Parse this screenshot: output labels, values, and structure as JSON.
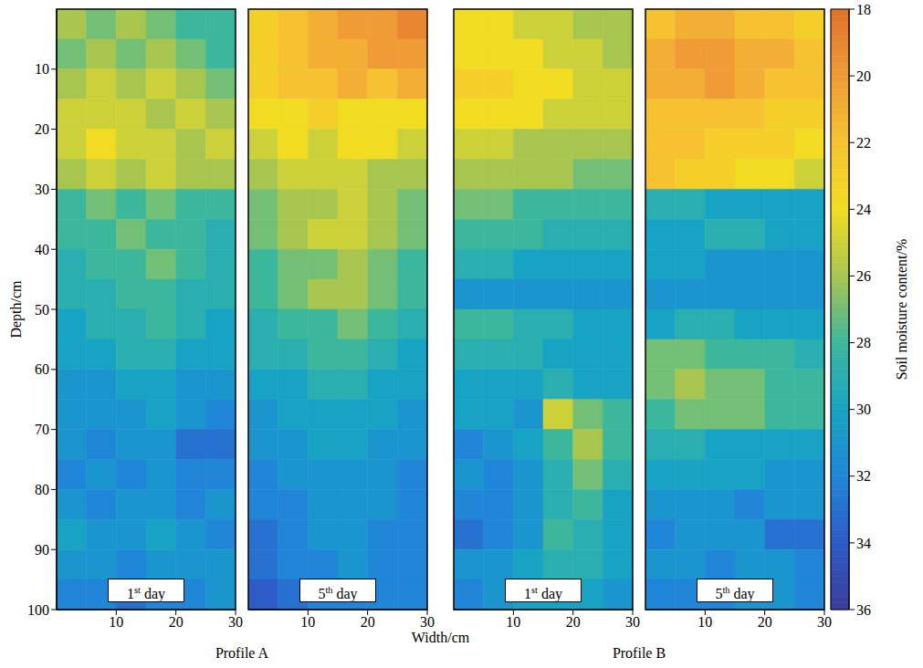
{
  "x_label": "Width/cm",
  "y_label": "Depth/cm",
  "colorbar": {
    "label": "Soil moisture content/%",
    "range": [
      18,
      36
    ],
    "ticks": [
      18,
      20,
      22,
      24,
      26,
      28,
      30,
      32,
      34,
      36
    ]
  },
  "chart_data": [
    {
      "type": "heatmap",
      "title": "1st day",
      "group": "Profile A",
      "tick_labels": true,
      "xlim": [
        0,
        30
      ],
      "xticks": [
        10,
        20,
        30
      ],
      "ylim": [
        0,
        100
      ],
      "yticks": [
        10,
        20,
        30,
        40,
        50,
        60,
        70,
        80,
        90,
        100
      ],
      "x_bins": [
        0,
        5,
        10,
        15,
        20,
        25,
        30
      ],
      "y_bins": [
        0,
        5,
        10,
        15,
        20,
        25,
        30,
        35,
        40,
        45,
        50,
        55,
        60,
        65,
        70,
        75,
        80,
        85,
        90,
        95,
        100
      ],
      "cells": [
        [
          26,
          27,
          26,
          27,
          28,
          28
        ],
        [
          27,
          26,
          27,
          26,
          27,
          28
        ],
        [
          26,
          25,
          26,
          25,
          26,
          27
        ],
        [
          25,
          25,
          25,
          26,
          25,
          26
        ],
        [
          25,
          24,
          25,
          25,
          26,
          25
        ],
        [
          26,
          25,
          26,
          25,
          26,
          26
        ],
        [
          28,
          27,
          28,
          27,
          28,
          28
        ],
        [
          28,
          28,
          27,
          28,
          28,
          29
        ],
        [
          29,
          28,
          28,
          27,
          28,
          29
        ],
        [
          29,
          29,
          28,
          28,
          29,
          29
        ],
        [
          30,
          29,
          29,
          28,
          29,
          30
        ],
        [
          30,
          30,
          29,
          29,
          30,
          30
        ],
        [
          31,
          31,
          30,
          30,
          31,
          31
        ],
        [
          31,
          31,
          31,
          30,
          31,
          32
        ],
        [
          31,
          32,
          31,
          31,
          33,
          33
        ],
        [
          32,
          31,
          32,
          31,
          32,
          32
        ],
        [
          31,
          32,
          31,
          31,
          32,
          31
        ],
        [
          30,
          31,
          31,
          30,
          31,
          32
        ],
        [
          31,
          31,
          32,
          31,
          31,
          31
        ],
        [
          32,
          32,
          33,
          32,
          32,
          31
        ]
      ]
    },
    {
      "type": "heatmap",
      "title": "5th day",
      "group": "Profile A",
      "tick_labels": "x",
      "xlim": [
        0,
        30
      ],
      "xticks": [
        10,
        20,
        30
      ],
      "ylim": [
        0,
        100
      ],
      "yticks": [
        10,
        20,
        30,
        40,
        50,
        60,
        70,
        80,
        90,
        100
      ],
      "x_bins": [
        0,
        5,
        10,
        15,
        20,
        25,
        30
      ],
      "y_bins": [
        0,
        5,
        10,
        15,
        20,
        25,
        30,
        35,
        40,
        45,
        50,
        55,
        60,
        65,
        70,
        75,
        80,
        85,
        90,
        95,
        100
      ],
      "cells": [
        [
          23,
          22,
          21,
          20,
          20,
          19
        ],
        [
          23,
          22,
          21,
          21,
          20,
          20
        ],
        [
          23,
          22,
          22,
          21,
          22,
          21
        ],
        [
          24,
          24,
          23,
          24,
          24,
          24
        ],
        [
          25,
          24,
          25,
          24,
          24,
          25
        ],
        [
          26,
          25,
          25,
          25,
          26,
          26
        ],
        [
          27,
          26,
          26,
          25,
          26,
          27
        ],
        [
          27,
          26,
          25,
          25,
          26,
          27
        ],
        [
          28,
          27,
          27,
          26,
          27,
          28
        ],
        [
          28,
          27,
          26,
          26,
          27,
          28
        ],
        [
          29,
          28,
          28,
          27,
          28,
          29
        ],
        [
          29,
          29,
          28,
          28,
          29,
          30
        ],
        [
          30,
          30,
          29,
          29,
          30,
          30
        ],
        [
          31,
          30,
          30,
          30,
          30,
          31
        ],
        [
          31,
          31,
          30,
          30,
          31,
          31
        ],
        [
          32,
          31,
          31,
          31,
          31,
          32
        ],
        [
          32,
          32,
          31,
          31,
          31,
          32
        ],
        [
          33,
          32,
          31,
          31,
          32,
          32
        ],
        [
          33,
          32,
          32,
          31,
          32,
          32
        ],
        [
          34,
          33,
          32,
          32,
          32,
          32
        ]
      ]
    },
    {
      "type": "heatmap",
      "title": "1st day",
      "group": "Profile B",
      "tick_labels": "x",
      "xlim": [
        0,
        30
      ],
      "xticks": [
        10,
        20,
        30
      ],
      "ylim": [
        0,
        100
      ],
      "yticks": [
        10,
        20,
        30,
        40,
        50,
        60,
        70,
        80,
        90,
        100
      ],
      "x_bins": [
        0,
        5,
        10,
        15,
        20,
        25,
        30
      ],
      "y_bins": [
        0,
        5,
        10,
        15,
        20,
        25,
        30,
        35,
        40,
        45,
        50,
        55,
        60,
        65,
        70,
        75,
        80,
        85,
        90,
        95,
        100
      ],
      "cells": [
        [
          24,
          24,
          25,
          25,
          26,
          26
        ],
        [
          24,
          24,
          24,
          25,
          25,
          26
        ],
        [
          23,
          23,
          24,
          24,
          25,
          25
        ],
        [
          24,
          24,
          24,
          25,
          25,
          25
        ],
        [
          25,
          25,
          26,
          26,
          26,
          26
        ],
        [
          26,
          26,
          26,
          26,
          27,
          27
        ],
        [
          27,
          27,
          28,
          28,
          28,
          28
        ],
        [
          28,
          28,
          28,
          29,
          29,
          29
        ],
        [
          29,
          29,
          30,
          30,
          30,
          30
        ],
        [
          31,
          31,
          31,
          31,
          31,
          31
        ],
        [
          28,
          28,
          29,
          29,
          30,
          30
        ],
        [
          29,
          29,
          29,
          30,
          30,
          30
        ],
        [
          30,
          30,
          30,
          29,
          30,
          30
        ],
        [
          30,
          30,
          31,
          25,
          27,
          28
        ],
        [
          32,
          31,
          30,
          28,
          26,
          28
        ],
        [
          31,
          32,
          31,
          29,
          27,
          29
        ],
        [
          32,
          32,
          31,
          29,
          28,
          30
        ],
        [
          33,
          32,
          31,
          28,
          29,
          30
        ],
        [
          31,
          31,
          30,
          29,
          29,
          30
        ],
        [
          32,
          31,
          30,
          30,
          30,
          31
        ]
      ]
    },
    {
      "type": "heatmap",
      "title": "5th day",
      "group": "Profile B",
      "tick_labels": "x",
      "xlim": [
        0,
        30
      ],
      "xticks": [
        10,
        20,
        30
      ],
      "ylim": [
        0,
        100
      ],
      "yticks": [
        10,
        20,
        30,
        40,
        50,
        60,
        70,
        80,
        90,
        100
      ],
      "x_bins": [
        0,
        5,
        10,
        15,
        20,
        25,
        30
      ],
      "y_bins": [
        0,
        5,
        10,
        15,
        20,
        25,
        30,
        35,
        40,
        45,
        50,
        55,
        60,
        65,
        70,
        75,
        80,
        85,
        90,
        95,
        100
      ],
      "cells": [
        [
          22,
          21,
          21,
          22,
          22,
          23
        ],
        [
          21,
          20,
          20,
          21,
          21,
          22
        ],
        [
          21,
          21,
          20,
          21,
          22,
          22
        ],
        [
          22,
          22,
          22,
          22,
          23,
          23
        ],
        [
          22,
          22,
          23,
          23,
          23,
          24
        ],
        [
          22,
          23,
          23,
          24,
          24,
          25
        ],
        [
          29,
          29,
          30,
          30,
          30,
          30
        ],
        [
          30,
          30,
          29,
          29,
          30,
          30
        ],
        [
          30,
          30,
          31,
          31,
          31,
          31
        ],
        [
          31,
          31,
          31,
          31,
          31,
          31
        ],
        [
          30,
          29,
          29,
          30,
          30,
          30
        ],
        [
          27,
          27,
          28,
          28,
          28,
          29
        ],
        [
          27,
          26,
          27,
          27,
          28,
          28
        ],
        [
          28,
          27,
          27,
          27,
          28,
          28
        ],
        [
          29,
          29,
          30,
          30,
          30,
          30
        ],
        [
          30,
          30,
          30,
          30,
          31,
          31
        ],
        [
          31,
          31,
          31,
          32,
          31,
          31
        ],
        [
          32,
          31,
          31,
          31,
          33,
          33
        ],
        [
          31,
          31,
          32,
          31,
          31,
          32
        ],
        [
          32,
          32,
          32,
          31,
          31,
          32
        ]
      ]
    }
  ]
}
